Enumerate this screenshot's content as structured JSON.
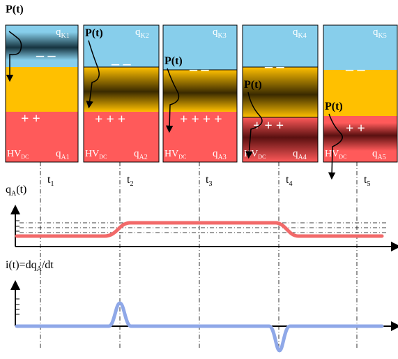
{
  "probe_label": "P(t)",
  "signs": {
    "minus": "– –",
    "plus2": "+ +",
    "plus3": "+ + +",
    "plus4": "+ + + +"
  },
  "colors": {
    "cathode": "#87ceeb",
    "gap": "#ffc000",
    "anode": "#ff5a5a",
    "qa_trace": "#f26a6a",
    "i_trace": "#8fa8e8",
    "axis": "#000000"
  },
  "panels": [
    {
      "k_sub": "K1",
      "a_sub": "A1",
      "time_sub": "1"
    },
    {
      "k_sub": "K2",
      "a_sub": "A2",
      "time_sub": "2"
    },
    {
      "k_sub": "K3",
      "a_sub": "A3",
      "time_sub": "3"
    },
    {
      "k_sub": "K4",
      "a_sub": "A4",
      "time_sub": "4"
    },
    {
      "k_sub": "K5",
      "a_sub": "A5",
      "time_sub": "5"
    }
  ],
  "labels": {
    "q": "q",
    "t": "t",
    "hv": "HV",
    "dc": "DC",
    "qa_axis_main": "q",
    "qa_axis_sub": "A",
    "qa_axis_tail": "(t)",
    "i_axis_main": "i(t)=dq",
    "i_axis_sub": "A",
    "i_axis_tail": "/dt"
  }
}
